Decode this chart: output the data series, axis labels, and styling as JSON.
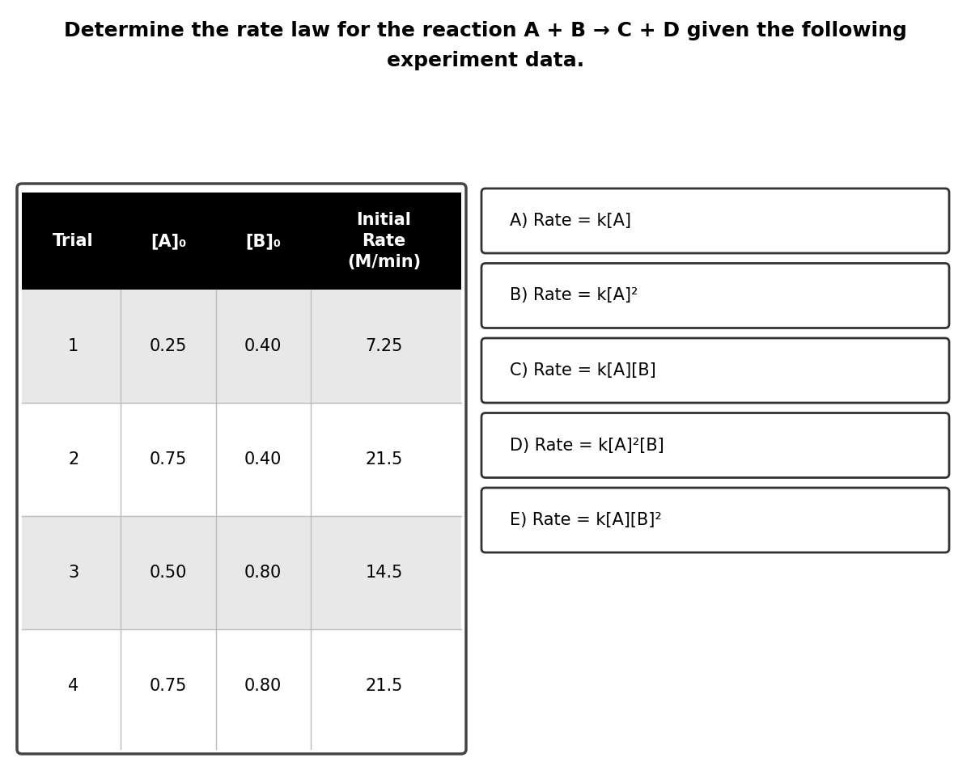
{
  "title_line1": "Determine the rate law for the reaction A + B → C + D given the following",
  "title_line2": "experiment data.",
  "table": {
    "headers": [
      "Trial",
      "[A]₀",
      "[B]₀",
      "Initial\nRate\n(M/min)"
    ],
    "rows": [
      [
        "1",
        "0.25",
        "0.40",
        "7.25"
      ],
      [
        "2",
        "0.75",
        "0.40",
        "21.5"
      ],
      [
        "3",
        "0.50",
        "0.80",
        "14.5"
      ],
      [
        "4",
        "0.75",
        "0.80",
        "21.5"
      ]
    ],
    "row_colors": [
      "#e8e8e8",
      "#ffffff",
      "#e8e8e8",
      "#ffffff"
    ],
    "header_bg": "#000000",
    "header_fg": "#ffffff",
    "border_color": "#555555"
  },
  "options": [
    "A) Rate = k[A]",
    "B) Rate = k[A]²",
    "C) Rate = k[A][B]",
    "D) Rate = k[A]²[B]",
    "E) Rate = k[A][B]²"
  ],
  "bg_color": "#ffffff",
  "font_size_title": 18,
  "font_size_table": 15,
  "font_size_options": 15
}
